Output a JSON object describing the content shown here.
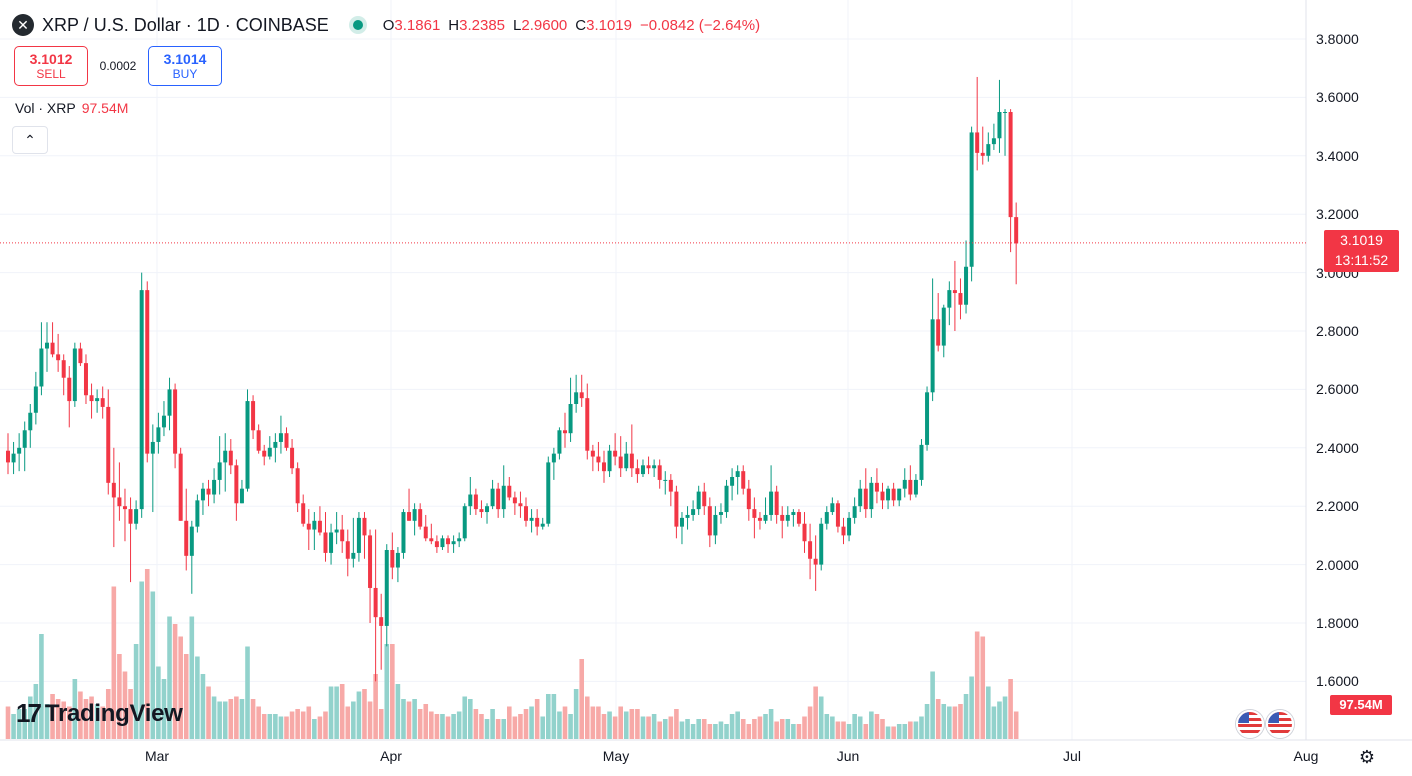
{
  "header": {
    "symbol_icon": "xrp-icon",
    "title": "XRP / U.S. Dollar · 1D · COINBASE",
    "open_label": "O",
    "open": "3.1861",
    "high_label": "H",
    "high": "3.2385",
    "low_label": "L",
    "low": "2.9600",
    "close_label": "C",
    "close": "3.1019",
    "change": "−0.0842 (−2.64%)"
  },
  "trade": {
    "sell_price": "3.1012",
    "sell_label": "SELL",
    "spread": "0.0002",
    "buy_price": "3.1014",
    "buy_label": "BUY"
  },
  "volume_legend": {
    "label": "Vol · XRP",
    "value": "97.54M"
  },
  "collapse_icon": "chevron-up-icon",
  "price_axis": {
    "labels": [
      "3.8000",
      "3.6000",
      "3.4000",
      "3.2000",
      "3.0000",
      "2.8000",
      "2.6000",
      "2.4000",
      "2.2000",
      "2.0000",
      "1.8000",
      "1.6000"
    ]
  },
  "time_axis": {
    "labels": [
      "Mar",
      "Apr",
      "May",
      "Jun",
      "Jul",
      "Aug"
    ]
  },
  "last_price": {
    "value": "3.1019",
    "countdown": "13:11:52"
  },
  "volume_badge": "97.54M",
  "logo": {
    "mark": "17",
    "text": "TradingView"
  },
  "settings_icon": "gear-icon",
  "colors": {
    "up": "#089981",
    "down": "#f23645",
    "up_vol": "#92d2cc",
    "down_vol": "#f7a9a7",
    "grid": "#f0f3fa"
  },
  "chart_data": {
    "type": "candlestick",
    "symbol": "XRP / U.S. Dollar",
    "interval": "1D",
    "exchange": "COINBASE",
    "ylim": [
      1.52,
      3.88
    ],
    "x_labels": [
      "Mar",
      "Apr",
      "May",
      "Jun",
      "Jul",
      "Aug"
    ],
    "candles": [
      [
        2.39,
        2.45,
        2.31,
        2.35
      ],
      [
        2.35,
        2.42,
        2.31,
        2.38
      ],
      [
        2.38,
        2.45,
        2.32,
        2.4
      ],
      [
        2.4,
        2.49,
        2.32,
        2.46
      ],
      [
        2.46,
        2.55,
        2.4,
        2.52
      ],
      [
        2.52,
        2.66,
        2.48,
        2.61
      ],
      [
        2.61,
        2.83,
        2.58,
        2.74
      ],
      [
        2.74,
        2.83,
        2.66,
        2.76
      ],
      [
        2.76,
        2.83,
        2.71,
        2.72
      ],
      [
        2.72,
        2.79,
        2.66,
        2.7
      ],
      [
        2.7,
        2.72,
        2.58,
        2.64
      ],
      [
        2.64,
        2.68,
        2.47,
        2.56
      ],
      [
        2.56,
        2.76,
        2.54,
        2.74
      ],
      [
        2.74,
        2.76,
        2.68,
        2.69
      ],
      [
        2.69,
        2.72,
        2.55,
        2.58
      ],
      [
        2.58,
        2.62,
        2.5,
        2.56
      ],
      [
        2.56,
        2.6,
        2.52,
        2.57
      ],
      [
        2.57,
        2.61,
        2.5,
        2.54
      ],
      [
        2.54,
        2.6,
        2.24,
        2.28
      ],
      [
        2.28,
        2.4,
        2.06,
        2.23
      ],
      [
        2.23,
        2.35,
        2.15,
        2.2
      ],
      [
        2.2,
        2.26,
        2.08,
        2.19
      ],
      [
        2.19,
        2.23,
        1.94,
        2.14
      ],
      [
        2.14,
        2.22,
        2.12,
        2.19
      ],
      [
        2.19,
        3.0,
        2.16,
        2.94
      ],
      [
        2.94,
        2.97,
        2.35,
        2.38
      ],
      [
        2.38,
        2.48,
        2.18,
        2.42
      ],
      [
        2.42,
        2.52,
        2.38,
        2.47
      ],
      [
        2.47,
        2.56,
        2.44,
        2.51
      ],
      [
        2.51,
        2.64,
        2.46,
        2.6
      ],
      [
        2.6,
        2.62,
        2.33,
        2.38
      ],
      [
        2.38,
        2.4,
        2.15,
        2.15
      ],
      [
        2.15,
        2.26,
        1.98,
        2.03
      ],
      [
        2.03,
        2.15,
        1.9,
        2.13
      ],
      [
        2.13,
        2.24,
        2.11,
        2.22
      ],
      [
        2.22,
        2.28,
        2.17,
        2.26
      ],
      [
        2.26,
        2.29,
        2.2,
        2.24
      ],
      [
        2.24,
        2.33,
        2.21,
        2.29
      ],
      [
        2.29,
        2.44,
        2.24,
        2.35
      ],
      [
        2.35,
        2.45,
        2.25,
        2.39
      ],
      [
        2.39,
        2.43,
        2.31,
        2.34
      ],
      [
        2.34,
        2.36,
        2.15,
        2.21
      ],
      [
        2.21,
        2.29,
        2.21,
        2.26
      ],
      [
        2.26,
        2.6,
        2.25,
        2.56
      ],
      [
        2.56,
        2.58,
        2.43,
        2.46
      ],
      [
        2.46,
        2.48,
        2.38,
        2.39
      ],
      [
        2.39,
        2.41,
        2.34,
        2.37
      ],
      [
        2.37,
        2.44,
        2.36,
        2.4
      ],
      [
        2.4,
        2.45,
        2.35,
        2.42
      ],
      [
        2.42,
        2.51,
        2.38,
        2.45
      ],
      [
        2.45,
        2.47,
        2.39,
        2.4
      ],
      [
        2.4,
        2.43,
        2.31,
        2.33
      ],
      [
        2.33,
        2.35,
        2.18,
        2.21
      ],
      [
        2.21,
        2.24,
        2.13,
        2.14
      ],
      [
        2.14,
        2.19,
        2.05,
        2.12
      ],
      [
        2.12,
        2.18,
        2.05,
        2.15
      ],
      [
        2.15,
        2.2,
        2.1,
        2.11
      ],
      [
        2.11,
        2.18,
        2.01,
        2.04
      ],
      [
        2.04,
        2.14,
        2.0,
        2.11
      ],
      [
        2.11,
        2.18,
        2.07,
        2.12
      ],
      [
        2.12,
        2.17,
        2.04,
        2.08
      ],
      [
        2.08,
        2.12,
        1.96,
        2.02
      ],
      [
        2.02,
        2.16,
        1.99,
        2.04
      ],
      [
        2.04,
        2.18,
        2.01,
        2.16
      ],
      [
        2.16,
        2.18,
        2.02,
        2.1
      ],
      [
        2.1,
        2.12,
        1.8,
        1.92
      ],
      [
        1.92,
        2.12,
        1.6,
        1.82
      ],
      [
        1.82,
        1.9,
        1.64,
        1.79
      ],
      [
        1.79,
        2.07,
        1.72,
        2.05
      ],
      [
        2.05,
        2.11,
        1.95,
        1.99
      ],
      [
        1.99,
        2.06,
        1.94,
        2.04
      ],
      [
        2.04,
        2.19,
        2.02,
        2.18
      ],
      [
        2.18,
        2.26,
        2.15,
        2.15
      ],
      [
        2.15,
        2.21,
        2.1,
        2.19
      ],
      [
        2.19,
        2.21,
        2.12,
        2.13
      ],
      [
        2.13,
        2.17,
        2.08,
        2.09
      ],
      [
        2.09,
        2.14,
        2.07,
        2.08
      ],
      [
        2.08,
        2.1,
        2.04,
        2.06
      ],
      [
        2.06,
        2.1,
        2.05,
        2.09
      ],
      [
        2.09,
        2.1,
        2.04,
        2.07
      ],
      [
        2.07,
        2.1,
        2.04,
        2.08
      ],
      [
        2.08,
        2.11,
        2.06,
        2.09
      ],
      [
        2.09,
        2.21,
        2.08,
        2.2
      ],
      [
        2.2,
        2.3,
        2.17,
        2.24
      ],
      [
        2.24,
        2.26,
        2.17,
        2.19
      ],
      [
        2.19,
        2.22,
        2.16,
        2.18
      ],
      [
        2.18,
        2.21,
        2.14,
        2.2
      ],
      [
        2.2,
        2.29,
        2.19,
        2.26
      ],
      [
        2.26,
        2.28,
        2.16,
        2.19
      ],
      [
        2.19,
        2.34,
        2.16,
        2.27
      ],
      [
        2.27,
        2.3,
        2.22,
        2.23
      ],
      [
        2.23,
        2.25,
        2.17,
        2.21
      ],
      [
        2.21,
        2.25,
        2.16,
        2.2
      ],
      [
        2.2,
        2.23,
        2.13,
        2.15
      ],
      [
        2.15,
        2.19,
        2.11,
        2.16
      ],
      [
        2.16,
        2.19,
        2.1,
        2.13
      ],
      [
        2.13,
        2.16,
        2.12,
        2.14
      ],
      [
        2.14,
        2.37,
        2.13,
        2.35
      ],
      [
        2.35,
        2.4,
        2.29,
        2.38
      ],
      [
        2.38,
        2.47,
        2.36,
        2.46
      ],
      [
        2.46,
        2.52,
        2.4,
        2.45
      ],
      [
        2.45,
        2.64,
        2.42,
        2.55
      ],
      [
        2.55,
        2.65,
        2.52,
        2.59
      ],
      [
        2.59,
        2.65,
        2.54,
        2.57
      ],
      [
        2.57,
        2.62,
        2.36,
        2.39
      ],
      [
        2.39,
        2.41,
        2.32,
        2.37
      ],
      [
        2.37,
        2.42,
        2.32,
        2.35
      ],
      [
        2.35,
        2.39,
        2.28,
        2.32
      ],
      [
        2.32,
        2.41,
        2.3,
        2.39
      ],
      [
        2.39,
        2.45,
        2.34,
        2.37
      ],
      [
        2.37,
        2.44,
        2.3,
        2.33
      ],
      [
        2.33,
        2.42,
        2.32,
        2.38
      ],
      [
        2.38,
        2.48,
        2.3,
        2.33
      ],
      [
        2.33,
        2.36,
        2.28,
        2.31
      ],
      [
        2.31,
        2.36,
        2.3,
        2.34
      ],
      [
        2.34,
        2.37,
        2.31,
        2.33
      ],
      [
        2.33,
        2.36,
        2.3,
        2.34
      ],
      [
        2.34,
        2.36,
        2.26,
        2.29
      ],
      [
        2.29,
        2.32,
        2.24,
        2.29
      ],
      [
        2.29,
        2.31,
        2.2,
        2.25
      ],
      [
        2.25,
        2.27,
        2.09,
        2.13
      ],
      [
        2.13,
        2.18,
        2.07,
        2.16
      ],
      [
        2.16,
        2.2,
        2.12,
        2.17
      ],
      [
        2.17,
        2.22,
        2.15,
        2.19
      ],
      [
        2.19,
        2.27,
        2.17,
        2.25
      ],
      [
        2.25,
        2.28,
        2.17,
        2.2
      ],
      [
        2.2,
        2.23,
        2.06,
        2.1
      ],
      [
        2.1,
        2.2,
        2.07,
        2.17
      ],
      [
        2.17,
        2.21,
        2.14,
        2.18
      ],
      [
        2.18,
        2.29,
        2.16,
        2.27
      ],
      [
        2.27,
        2.33,
        2.22,
        2.3
      ],
      [
        2.3,
        2.34,
        2.24,
        2.32
      ],
      [
        2.32,
        2.34,
        2.24,
        2.26
      ],
      [
        2.26,
        2.29,
        2.15,
        2.19
      ],
      [
        2.19,
        2.23,
        2.09,
        2.16
      ],
      [
        2.16,
        2.18,
        2.12,
        2.15
      ],
      [
        2.15,
        2.23,
        2.14,
        2.17
      ],
      [
        2.17,
        2.34,
        2.15,
        2.25
      ],
      [
        2.25,
        2.27,
        2.14,
        2.17
      ],
      [
        2.17,
        2.2,
        2.09,
        2.15
      ],
      [
        2.15,
        2.2,
        2.13,
        2.17
      ],
      [
        2.17,
        2.19,
        2.13,
        2.18
      ],
      [
        2.18,
        2.19,
        2.13,
        2.14
      ],
      [
        2.14,
        2.18,
        2.04,
        2.08
      ],
      [
        2.08,
        2.14,
        1.95,
        2.02
      ],
      [
        2.02,
        2.1,
        1.91,
        2.0
      ],
      [
        2.0,
        2.16,
        1.98,
        2.14
      ],
      [
        2.14,
        2.2,
        2.12,
        2.18
      ],
      [
        2.18,
        2.23,
        2.17,
        2.21
      ],
      [
        2.21,
        2.22,
        2.11,
        2.13
      ],
      [
        2.13,
        2.16,
        2.07,
        2.1
      ],
      [
        2.1,
        2.18,
        2.08,
        2.16
      ],
      [
        2.16,
        2.23,
        2.14,
        2.2
      ],
      [
        2.2,
        2.29,
        2.18,
        2.26
      ],
      [
        2.26,
        2.33,
        2.16,
        2.19
      ],
      [
        2.19,
        2.3,
        2.16,
        2.28
      ],
      [
        2.28,
        2.33,
        2.21,
        2.25
      ],
      [
        2.25,
        2.28,
        2.19,
        2.22
      ],
      [
        2.22,
        2.27,
        2.19,
        2.26
      ],
      [
        2.26,
        2.28,
        2.2,
        2.22
      ],
      [
        2.22,
        2.26,
        2.2,
        2.26
      ],
      [
        2.26,
        2.33,
        2.23,
        2.29
      ],
      [
        2.29,
        2.34,
        2.22,
        2.24
      ],
      [
        2.24,
        2.31,
        2.23,
        2.29
      ],
      [
        2.29,
        2.43,
        2.27,
        2.41
      ],
      [
        2.41,
        2.61,
        2.39,
        2.59
      ],
      [
        2.59,
        2.98,
        2.56,
        2.84
      ],
      [
        2.84,
        2.93,
        2.73,
        2.75
      ],
      [
        2.75,
        2.89,
        2.71,
        2.88
      ],
      [
        2.88,
        2.97,
        2.82,
        2.94
      ],
      [
        2.94,
        3.04,
        2.8,
        2.93
      ],
      [
        2.93,
        2.98,
        2.84,
        2.89
      ],
      [
        2.89,
        3.11,
        2.86,
        3.02
      ],
      [
        3.02,
        3.5,
        2.97,
        3.48
      ],
      [
        3.48,
        3.67,
        3.35,
        3.41
      ],
      [
        3.41,
        3.5,
        3.37,
        3.4
      ],
      [
        3.4,
        3.48,
        3.38,
        3.44
      ],
      [
        3.44,
        3.51,
        3.42,
        3.46
      ],
      [
        3.46,
        3.66,
        3.41,
        3.55
      ],
      [
        3.55,
        3.56,
        3.4,
        3.55
      ],
      [
        3.55,
        3.56,
        3.07,
        3.19
      ],
      [
        3.19,
        3.24,
        2.96,
        3.1
      ]
    ],
    "volume_levels": [
      0.13,
      0.1,
      0.12,
      0.12,
      0.17,
      0.22,
      0.42,
      0.14,
      0.18,
      0.16,
      0.15,
      0.13,
      0.24,
      0.19,
      0.16,
      0.17,
      0.14,
      0.13,
      0.2,
      0.61,
      0.34,
      0.27,
      0.2,
      0.38,
      0.63,
      0.68,
      0.59,
      0.29,
      0.24,
      0.49,
      0.46,
      0.41,
      0.34,
      0.49,
      0.33,
      0.26,
      0.21,
      0.17,
      0.15,
      0.15,
      0.16,
      0.17,
      0.16,
      0.37,
      0.16,
      0.13,
      0.1,
      0.1,
      0.1,
      0.09,
      0.09,
      0.11,
      0.12,
      0.11,
      0.13,
      0.08,
      0.09,
      0.11,
      0.21,
      0.21,
      0.22,
      0.13,
      0.15,
      0.19,
      0.2,
      0.15,
      0.26,
      0.12,
      0.38,
      0.38,
      0.22,
      0.16,
      0.15,
      0.16,
      0.12,
      0.14,
      0.11,
      0.1,
      0.1,
      0.09,
      0.1,
      0.11,
      0.17,
      0.16,
      0.12,
      0.1,
      0.08,
      0.12,
      0.08,
      0.08,
      0.13,
      0.09,
      0.1,
      0.12,
      0.13,
      0.16,
      0.09,
      0.18,
      0.18,
      0.11,
      0.13,
      0.1,
      0.2,
      0.32,
      0.17,
      0.13,
      0.13,
      0.1,
      0.11,
      0.09,
      0.13,
      0.11,
      0.12,
      0.12,
      0.09,
      0.09,
      0.1,
      0.07,
      0.08,
      0.09,
      0.12,
      0.07,
      0.08,
      0.06,
      0.08,
      0.08,
      0.06,
      0.06,
      0.07,
      0.06,
      0.1,
      0.11,
      0.08,
      0.06,
      0.08,
      0.09,
      0.1,
      0.12,
      0.07,
      0.08,
      0.08,
      0.06,
      0.06,
      0.09,
      0.13,
      0.21,
      0.17,
      0.1,
      0.09,
      0.07,
      0.07,
      0.06,
      0.1,
      0.09,
      0.06,
      0.11,
      0.1,
      0.08,
      0.05,
      0.05,
      0.06,
      0.06,
      0.07,
      0.07,
      0.09,
      0.14,
      0.27,
      0.16,
      0.14,
      0.13,
      0.13,
      0.14,
      0.18,
      0.25,
      0.43,
      0.41,
      0.21,
      0.13,
      0.15,
      0.17,
      0.24,
      0.11
    ]
  }
}
